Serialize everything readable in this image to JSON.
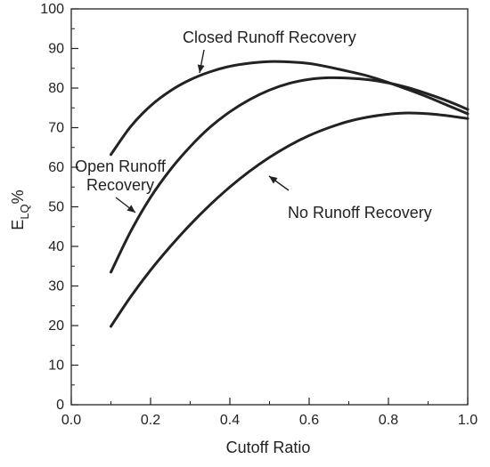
{
  "chart_data": {
    "type": "line",
    "xlabel": "Cutoff Ratio",
    "ylabel_main": "E",
    "ylabel_sub": "LQ",
    "ylabel_suffix": "%",
    "xlim": [
      0,
      1
    ],
    "ylim": [
      0,
      100
    ],
    "xticks": [
      "0.0",
      "0.2",
      "0.4",
      "0.6",
      "0.8",
      "1.0"
    ],
    "yticks": [
      "0",
      "10",
      "20",
      "30",
      "40",
      "50",
      "60",
      "70",
      "80",
      "90",
      "100"
    ],
    "grid": false,
    "colors": {
      "line": "#222222",
      "axis": "#222222"
    },
    "series": [
      {
        "name": "Closed Runoff Recovery",
        "x": [
          0.1,
          0.15,
          0.2,
          0.25,
          0.3,
          0.35,
          0.4,
          0.45,
          0.5,
          0.55,
          0.6,
          0.65,
          0.7,
          0.75,
          0.8,
          0.85,
          0.9,
          0.95,
          1.0
        ],
        "y": [
          63.2,
          70.3,
          75.5,
          79.3,
          82.1,
          84.1,
          85.5,
          86.3,
          86.7,
          86.6,
          86.2,
          85.3,
          84.2,
          83.0,
          81.4,
          79.6,
          77.7,
          75.6,
          73.5
        ]
      },
      {
        "name": "Open Runoff Recovery",
        "x": [
          0.1,
          0.15,
          0.2,
          0.25,
          0.3,
          0.35,
          0.4,
          0.45,
          0.5,
          0.55,
          0.6,
          0.65,
          0.7,
          0.75,
          0.8,
          0.85,
          0.9,
          0.95,
          1.0
        ],
        "y": [
          33.5,
          43.8,
          52.4,
          59.4,
          65.2,
          70.1,
          74.0,
          77.1,
          79.5,
          81.2,
          82.2,
          82.6,
          82.5,
          82.1,
          81.3,
          80.1,
          78.5,
          76.7,
          74.6
        ]
      },
      {
        "name": "No Runoff Recovery",
        "x": [
          0.1,
          0.15,
          0.2,
          0.25,
          0.3,
          0.35,
          0.4,
          0.45,
          0.5,
          0.55,
          0.6,
          0.65,
          0.7,
          0.75,
          0.8,
          0.85,
          0.9,
          0.95,
          1.0
        ],
        "y": [
          19.8,
          27.3,
          34.0,
          40.0,
          45.5,
          50.5,
          55.0,
          59.0,
          62.5,
          65.5,
          68.0,
          70.0,
          71.6,
          72.7,
          73.4,
          73.7,
          73.5,
          73.0,
          72.3
        ]
      }
    ],
    "annotations": [
      {
        "text": "Closed Runoff Recovery",
        "series": 0,
        "lines": [
          "Closed Runoff Recovery"
        ]
      },
      {
        "text": "Open Runoff Recovery",
        "series": 1,
        "lines": [
          "Open Runoff",
          "Recovery"
        ]
      },
      {
        "text": "No Runoff Recovery",
        "series": 2,
        "lines": [
          "No Runoff Recovery"
        ]
      }
    ]
  }
}
